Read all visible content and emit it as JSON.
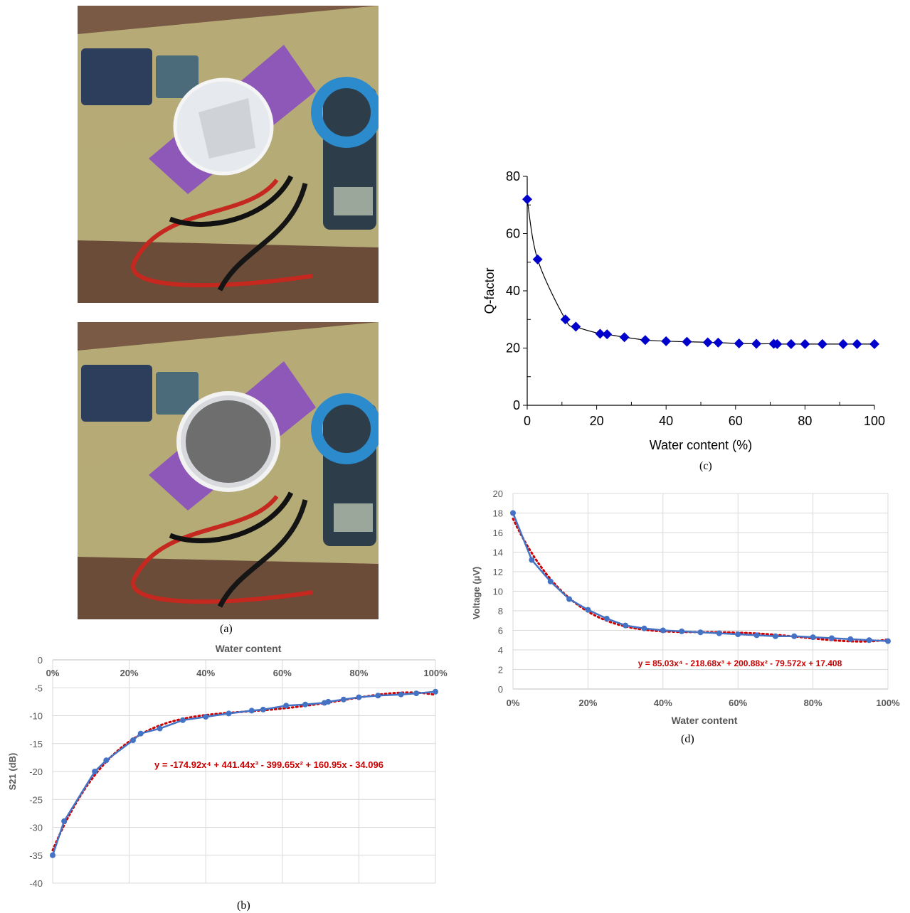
{
  "captions": {
    "a": "(a)",
    "b": "(b)",
    "c": "(c)",
    "d": "(d)"
  },
  "colors": {
    "series_blue": "#4472c4",
    "trend_red": "#cc0000",
    "marker_c": "#0000cc",
    "grid": "#d9d9d9"
  },
  "chart_data": [
    {
      "id": "b",
      "type": "line",
      "title": "Water content",
      "xlabel": "",
      "ylabel": "S21 (dB)",
      "xlim": [
        0,
        1
      ],
      "ylim": [
        -40,
        0
      ],
      "x_ticks": [
        "0%",
        "20%",
        "40%",
        "60%",
        "80%",
        "100%"
      ],
      "y_ticks": [
        "0",
        "-5",
        "-10",
        "-15",
        "-20",
        "-25",
        "-30",
        "-35",
        "-40"
      ],
      "x_axis_position": "top",
      "grid": true,
      "series": [
        {
          "x": [
            0,
            0.03,
            0.11,
            0.14,
            0.21,
            0.23,
            0.28,
            0.34,
            0.4,
            0.46,
            0.52,
            0.55,
            0.61,
            0.66,
            0.71,
            0.72,
            0.76,
            0.8,
            0.85,
            0.91,
            0.95,
            1.0
          ],
          "values": [
            -35,
            -28.9,
            -20,
            -18,
            -14.4,
            -13.2,
            -12.3,
            -10.8,
            -10.2,
            -9.6,
            -9.1,
            -8.9,
            -8.2,
            -8.0,
            -7.7,
            -7.5,
            -7.1,
            -6.7,
            -6.4,
            -6.2,
            -6.0,
            -5.7
          ]
        }
      ],
      "trendline": {
        "label": "y = -174.92x⁴ + 441.44x³ - 399.65x² + 160.95x - 34.096",
        "coefficients": [
          -174.92,
          441.44,
          -399.65,
          160.95,
          -34.096
        ]
      }
    },
    {
      "id": "c",
      "type": "scatter",
      "title": "",
      "xlabel": "Water content (%)",
      "ylabel": "Q-factor",
      "xlim": [
        0,
        100
      ],
      "ylim": [
        0,
        80
      ],
      "x_ticks": [
        "0",
        "20",
        "40",
        "60",
        "80",
        "100"
      ],
      "y_ticks": [
        "0",
        "20",
        "40",
        "60",
        "80"
      ],
      "grid": false,
      "series": [
        {
          "x": [
            0,
            3,
            11,
            14,
            21,
            23,
            28,
            34,
            40,
            46,
            52,
            55,
            61,
            66,
            71,
            72,
            76,
            80,
            85,
            91,
            95,
            100
          ],
          "values": [
            72,
            51,
            30,
            27.5,
            25,
            24.8,
            23.8,
            22.8,
            22.4,
            22.2,
            22.0,
            21.9,
            21.6,
            21.5,
            21.5,
            21.4,
            21.4,
            21.4,
            21.4,
            21.4,
            21.4,
            21.4
          ]
        }
      ]
    },
    {
      "id": "d",
      "type": "line",
      "title": "",
      "xlabel": "Water content",
      "ylabel": "Voltage (µV)",
      "xlim": [
        0,
        1
      ],
      "ylim": [
        0,
        20
      ],
      "x_ticks": [
        "0%",
        "20%",
        "40%",
        "60%",
        "80%",
        "100%"
      ],
      "y_ticks": [
        "0",
        "2",
        "4",
        "6",
        "8",
        "10",
        "12",
        "14",
        "16",
        "18",
        "20"
      ],
      "grid": true,
      "series": [
        {
          "x": [
            0,
            0.05,
            0.1,
            0.15,
            0.2,
            0.25,
            0.3,
            0.35,
            0.4,
            0.45,
            0.5,
            0.55,
            0.6,
            0.65,
            0.7,
            0.75,
            0.8,
            0.85,
            0.9,
            0.95,
            1.0
          ],
          "values": [
            18,
            13.2,
            11,
            9.2,
            8.1,
            7.2,
            6.5,
            6.2,
            6.0,
            5.9,
            5.8,
            5.7,
            5.6,
            5.5,
            5.4,
            5.4,
            5.3,
            5.2,
            5.1,
            5.0,
            4.9
          ]
        }
      ],
      "trendline": {
        "label": "y = 85.03x⁴ - 218.68x³ + 200.88x² - 79.572x + 17.408",
        "coefficients": [
          85.03,
          -218.68,
          200.88,
          -79.572,
          17.408
        ]
      }
    }
  ]
}
